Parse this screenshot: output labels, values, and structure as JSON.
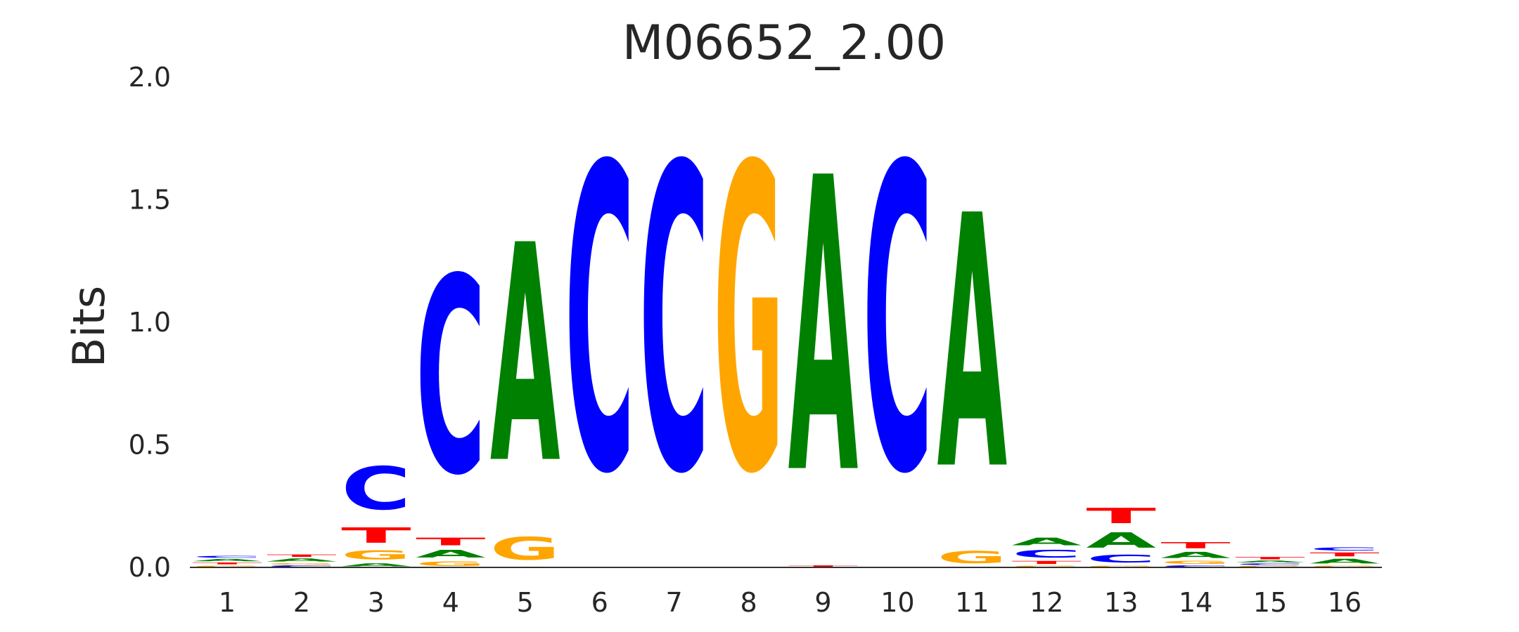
{
  "chart_data": {
    "type": "sequence-logo",
    "title": "M06652_2.00",
    "ylabel": "Bits",
    "xlabel": "",
    "ylim": [
      0,
      2.0
    ],
    "yticks": [
      "0.0",
      "0.5",
      "1.0",
      "1.5",
      "2.0"
    ],
    "ytick_values": [
      0,
      0.5,
      1.0,
      1.5,
      2.0
    ],
    "grid": false,
    "colors": {
      "A": "#008000",
      "C": "#0000ff",
      "G": "#ffa500",
      "T": "#ff0000"
    },
    "positions": [
      {
        "label": "1",
        "letters": [
          [
            "G",
            0.01
          ],
          [
            "T",
            0.012
          ],
          [
            "A",
            0.015
          ],
          [
            "C",
            0.012
          ]
        ]
      },
      {
        "label": "2",
        "letters": [
          [
            "C",
            0.01
          ],
          [
            "G",
            0.01
          ],
          [
            "A",
            0.02
          ],
          [
            "T",
            0.015
          ]
        ]
      },
      {
        "label": "3",
        "letters": [
          [
            "A",
            0.02
          ],
          [
            "G",
            0.06
          ],
          [
            "T",
            0.1
          ],
          [
            "C",
            0.28
          ]
        ]
      },
      {
        "label": "4",
        "letters": [
          [
            "G",
            0.03
          ],
          [
            "A",
            0.05
          ],
          [
            "T",
            0.05
          ],
          [
            "C",
            1.28
          ]
        ]
      },
      {
        "label": "5",
        "letters": [
          [
            "G",
            0.15
          ],
          [
            "A",
            1.42
          ]
        ]
      },
      {
        "label": "6",
        "letters": [
          [
            "C",
            1.99
          ]
        ]
      },
      {
        "label": "7",
        "letters": [
          [
            "C",
            1.99
          ]
        ]
      },
      {
        "label": "8",
        "letters": [
          [
            "G",
            1.99
          ]
        ]
      },
      {
        "label": "9",
        "letters": [
          [
            "T",
            0.01
          ],
          [
            "A",
            1.92
          ]
        ]
      },
      {
        "label": "10",
        "letters": [
          [
            "C",
            1.99
          ]
        ]
      },
      {
        "label": "11",
        "letters": [
          [
            "G",
            0.08
          ],
          [
            "A",
            1.65
          ]
        ]
      },
      {
        "label": "12",
        "letters": [
          [
            "G",
            0.01
          ],
          [
            "T",
            0.02
          ],
          [
            "C",
            0.05
          ],
          [
            "A",
            0.05
          ]
        ]
      },
      {
        "label": "13",
        "letters": [
          [
            "G",
            0.01
          ],
          [
            "C",
            0.05
          ],
          [
            "A",
            0.1
          ],
          [
            "T",
            0.1
          ]
        ]
      },
      {
        "label": "14",
        "letters": [
          [
            "C",
            0.01
          ],
          [
            "G",
            0.02
          ],
          [
            "A",
            0.04
          ],
          [
            "T",
            0.04
          ]
        ]
      },
      {
        "label": "15",
        "letters": [
          [
            "G",
            0.008
          ],
          [
            "C",
            0.01
          ],
          [
            "A",
            0.012
          ],
          [
            "T",
            0.015
          ]
        ]
      },
      {
        "label": "16",
        "letters": [
          [
            "G",
            0.01
          ],
          [
            "A",
            0.03
          ],
          [
            "T",
            0.025
          ],
          [
            "C",
            0.02
          ]
        ]
      }
    ]
  }
}
